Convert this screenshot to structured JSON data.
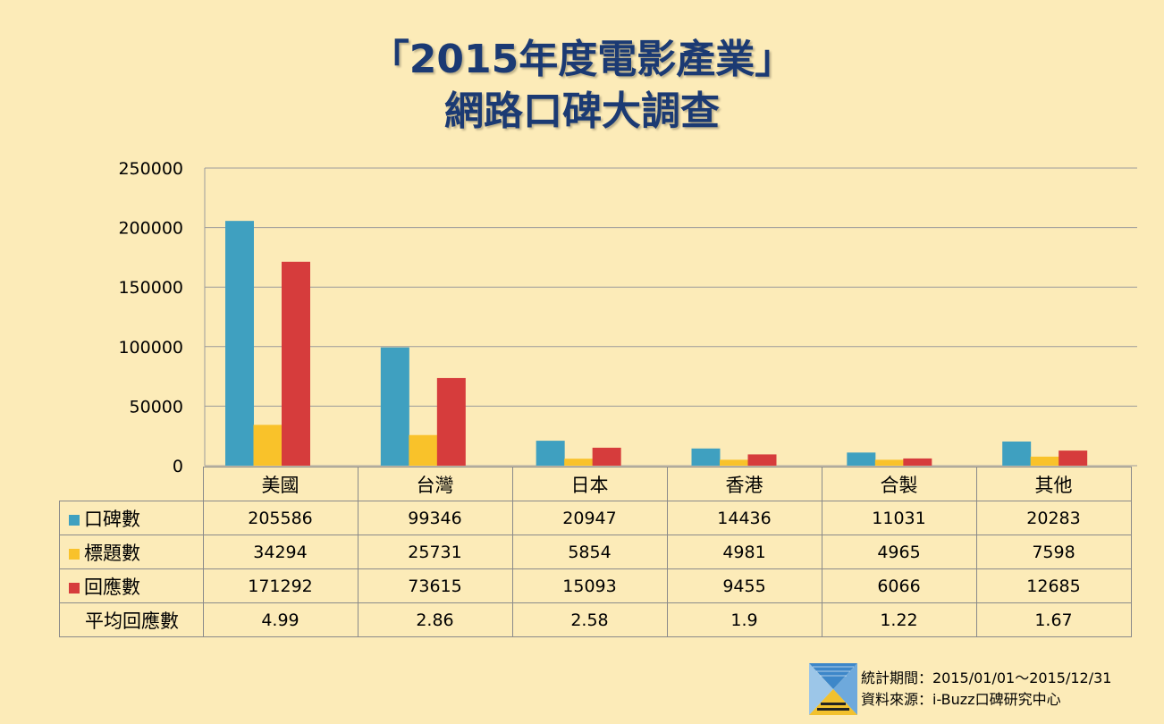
{
  "title": {
    "line1": "「2015年度電影產業」",
    "line2": "網路口碑大調查"
  },
  "colors": {
    "background": "#fcebb8",
    "title": "#1b3a73",
    "series1": "#3fa0c0",
    "series2": "#f9c22a",
    "series3": "#d63c3c",
    "grid": "#9b9b9b"
  },
  "chart_data": {
    "type": "bar",
    "categories": [
      "美國",
      "台灣",
      "日本",
      "香港",
      "合製",
      "其他"
    ],
    "series": [
      {
        "name": "口碑數",
        "values": [
          205586,
          99346,
          20947,
          14436,
          11031,
          20283
        ]
      },
      {
        "name": "標題數",
        "values": [
          34294,
          25731,
          5854,
          4981,
          4965,
          7598
        ]
      },
      {
        "name": "回應數",
        "values": [
          171292,
          73615,
          15093,
          9455,
          6066,
          12685
        ]
      }
    ],
    "extra_row": {
      "name": "平均回應數",
      "values": [
        "4.99",
        "2.86",
        "2.58",
        "1.9",
        "1.22",
        "1.67"
      ]
    },
    "ylim": [
      0,
      250000
    ],
    "yticks": [
      "0",
      "50000",
      "100000",
      "150000",
      "200000",
      "250000"
    ],
    "grid": true,
    "legend": "data-table"
  },
  "footer": {
    "period": "統計期間：2015/01/01～2015/12/31",
    "source": "資料來源：i-Buzz口碑研究中心",
    "logo_icon": "i-buzz-logo-icon"
  }
}
